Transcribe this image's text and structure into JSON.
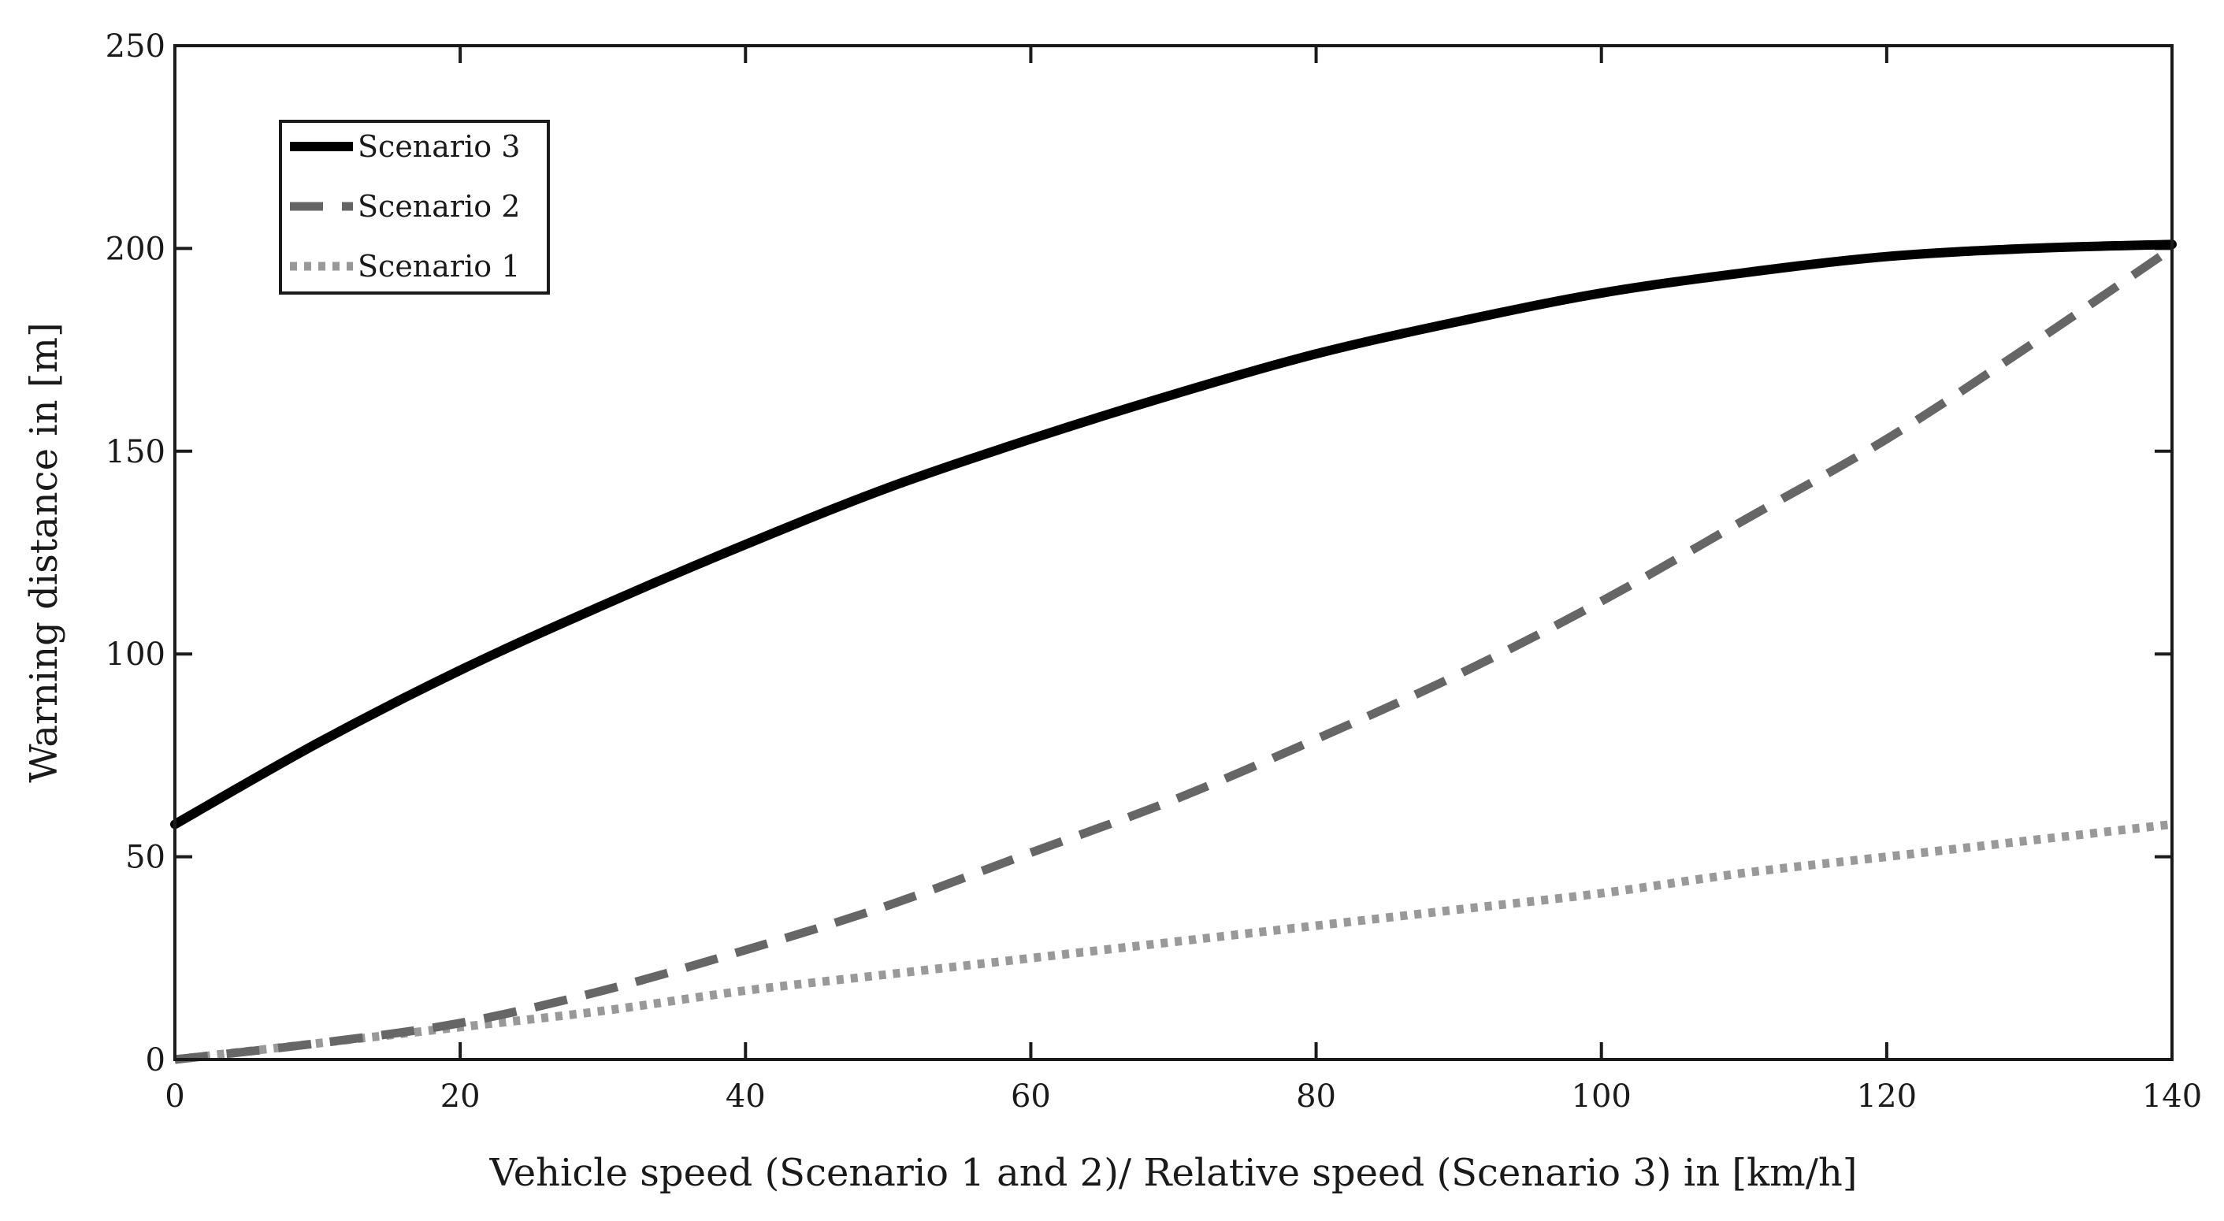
{
  "chart_data": {
    "type": "line",
    "title": "",
    "xlabel": "Vehicle speed (Scenario 1 and 2)/ Relative speed (Scenario 3) in [km/h]",
    "ylabel": "Warning distance in [m]",
    "xlim": [
      0,
      140
    ],
    "ylim": [
      0,
      250
    ],
    "xticks": [
      0,
      20,
      40,
      60,
      80,
      100,
      120,
      140
    ],
    "yticks": [
      0,
      50,
      100,
      150,
      200,
      250
    ],
    "grid": false,
    "legend_position": "top-left",
    "x": [
      0,
      10,
      20,
      30,
      40,
      50,
      60,
      70,
      80,
      90,
      100,
      110,
      120,
      130,
      140
    ],
    "series": [
      {
        "name": "Scenario 3",
        "style": "solid",
        "color": "#000000",
        "values": [
          58,
          78,
          96,
          112,
          127,
          141,
          153,
          164,
          174,
          182,
          189,
          194,
          198,
          200,
          201
        ]
      },
      {
        "name": "Scenario 2",
        "style": "dashed",
        "color": "#666666",
        "values": [
          0,
          4,
          9,
          17,
          27,
          38,
          51,
          64,
          79,
          95,
          113,
          133,
          153,
          176,
          200
        ]
      },
      {
        "name": "Scenario 1",
        "style": "dotted",
        "color": "#999999",
        "values": [
          0,
          4,
          8,
          12,
          17,
          21,
          25,
          29,
          33,
          37,
          41,
          46,
          50,
          54,
          58
        ]
      }
    ]
  }
}
